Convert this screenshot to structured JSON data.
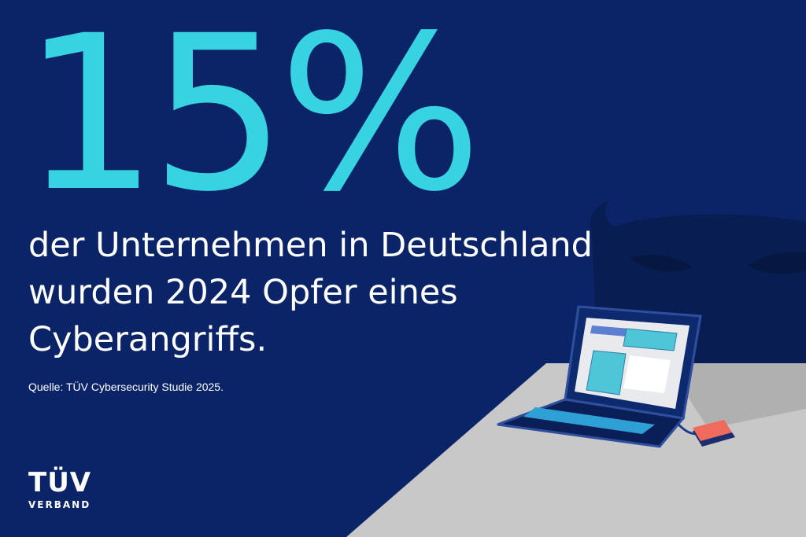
{
  "stat": {
    "value": "15%"
  },
  "headline": {
    "line1": "der Unternehmen in Deutschland",
    "line2": "wurden 2024 Opfer eines",
    "line3": "Cyberangriffs."
  },
  "source": "Quelle: TÜV Cybersecurity Studie 2025.",
  "logo": {
    "main": "TÜV",
    "sub": "VERBAND"
  },
  "colors": {
    "background": "#0a2467",
    "accent": "#38d3e2",
    "text": "#ffffff",
    "table": "#c8c8c8",
    "device": "#f16a5e"
  },
  "illustration": {
    "icons": [
      "attacker-silhouette-icon",
      "laptop-icon",
      "external-drive-icon"
    ]
  }
}
